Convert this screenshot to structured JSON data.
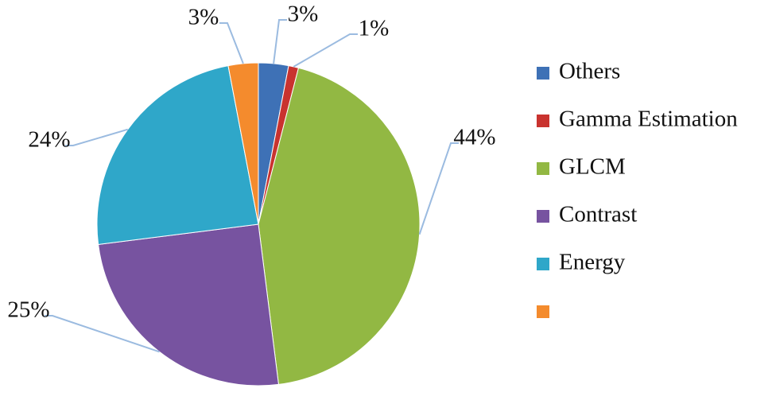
{
  "chart_data": {
    "type": "pie",
    "categories": [
      "Others",
      "Gamma Estimation",
      "GLCM",
      "Contrast",
      "Energy",
      null
    ],
    "values": [
      3,
      1,
      44,
      25,
      24,
      3
    ],
    "value_labels": [
      "3%",
      "1%",
      "44%",
      "25%",
      "24%",
      "3%"
    ],
    "colors": [
      "#3e71b6",
      "#c9332f",
      "#92b843",
      "#7753a0",
      "#2fa7c9",
      "#f48b2d"
    ],
    "legend": "right"
  }
}
